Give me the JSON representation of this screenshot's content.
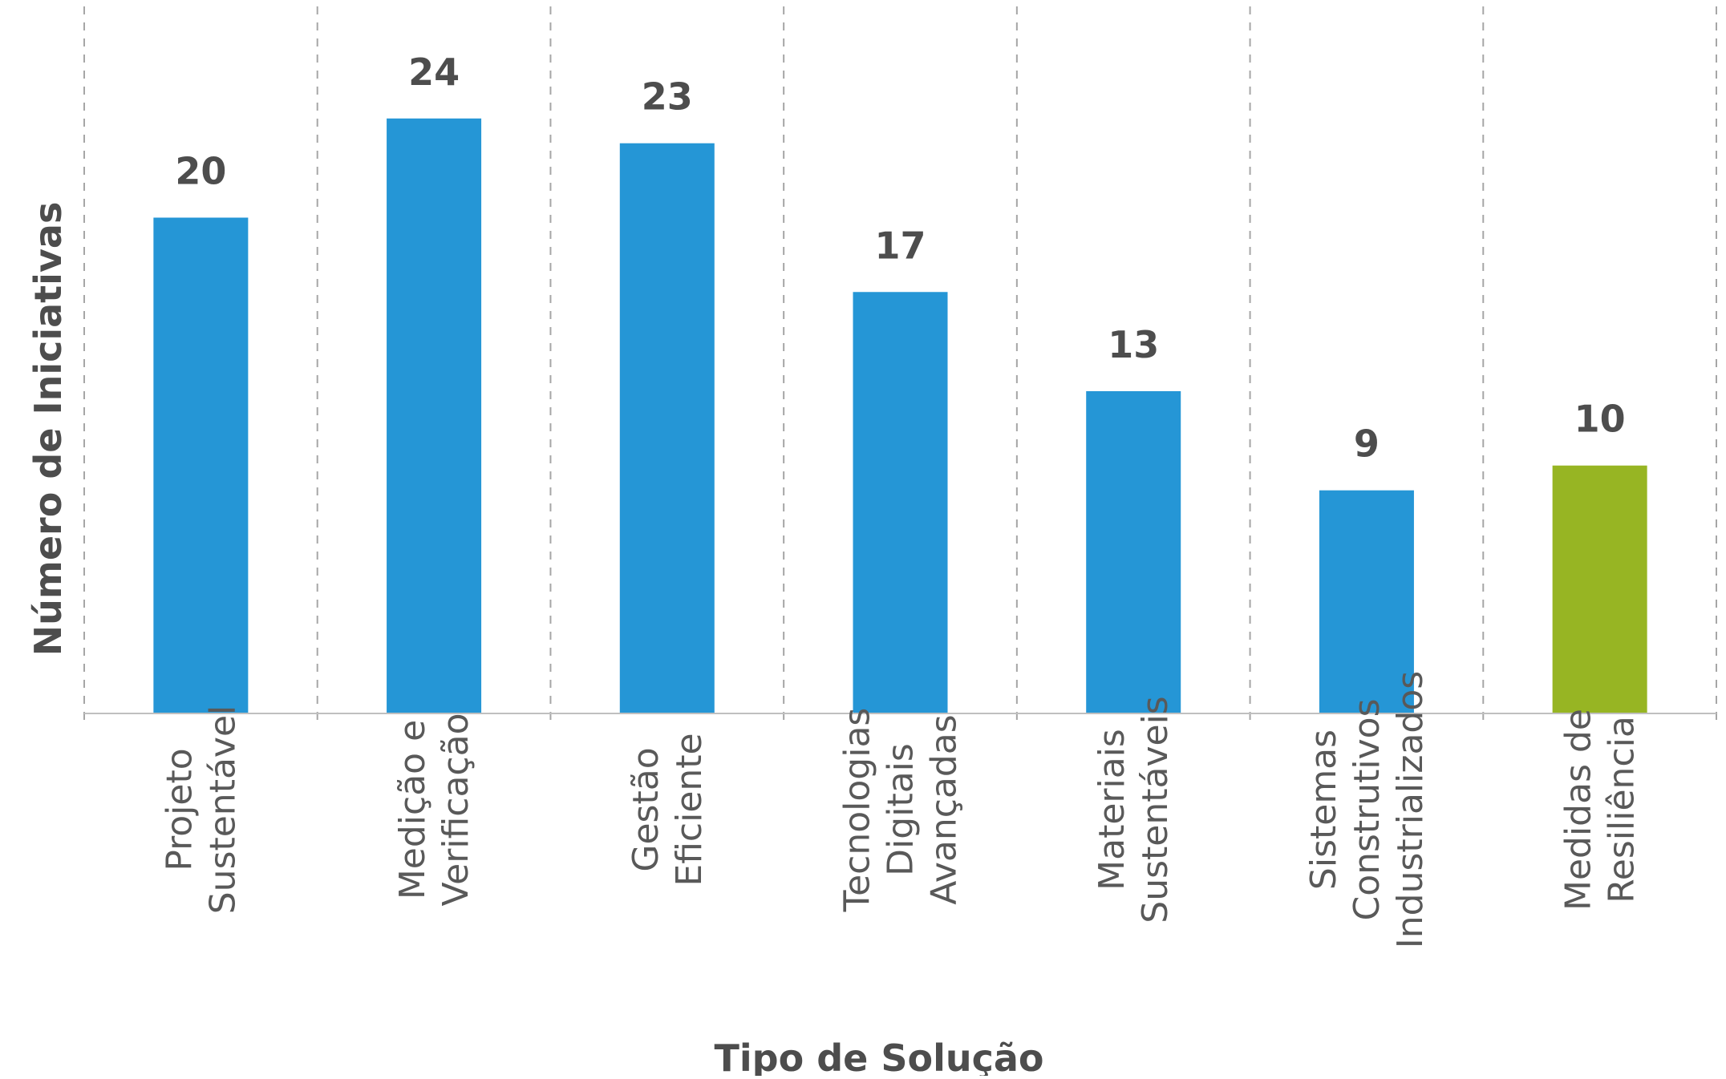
{
  "chart_data": {
    "type": "bar",
    "categories": [
      [
        "Projeto",
        "Sustentável"
      ],
      [
        "Medição e",
        "Verificação"
      ],
      [
        "Gestão",
        "Eficiente"
      ],
      [
        "Tecnologias",
        "Digitais",
        "Avançadas"
      ],
      [
        "Materiais",
        "Sustentáveis"
      ],
      [
        "Sistemas",
        "Construtivos",
        "Industrializados"
      ],
      [
        "Medidas de",
        "Resiliência"
      ]
    ],
    "values": [
      20,
      24,
      23,
      17,
      13,
      9,
      10
    ],
    "bar_colors": [
      "#2596d6",
      "#2596d6",
      "#2596d6",
      "#2596d6",
      "#2596d6",
      "#2596d6",
      "#97b523"
    ],
    "xlabel": "Tipo de Solução",
    "ylabel": "Número de Iniciativas",
    "ylim": [
      0,
      27
    ],
    "grid": "vertical dashed separators",
    "legend": "none"
  }
}
